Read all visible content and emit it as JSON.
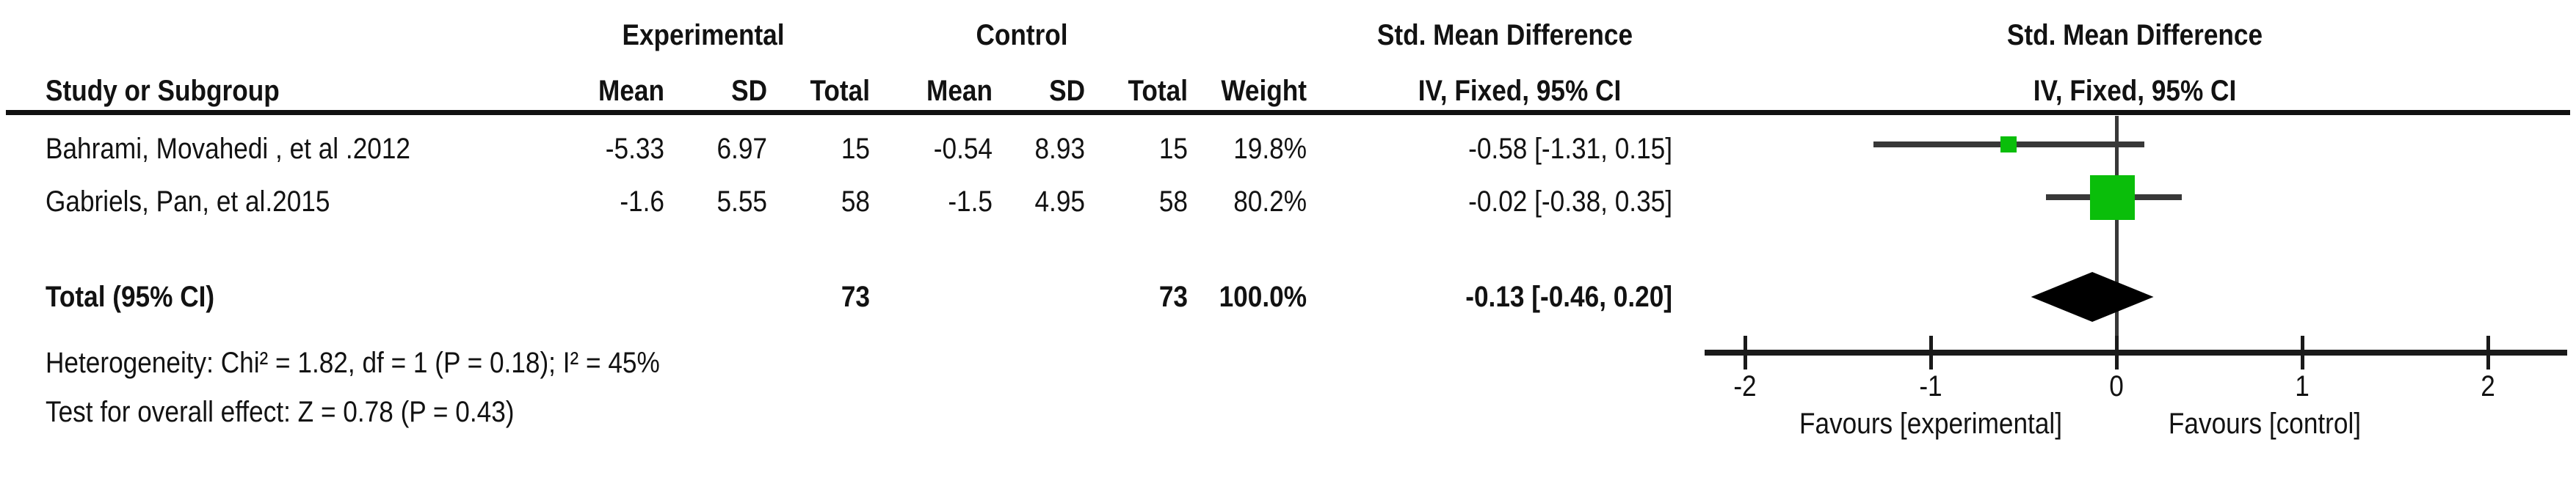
{
  "figure": {
    "group_headers": {
      "experimental": "Experimental",
      "control": "Control",
      "smd": "Std. Mean Difference"
    },
    "col_headers": {
      "study": "Study or Subgroup",
      "mean": "Mean",
      "sd": "SD",
      "total": "Total",
      "weight": "Weight",
      "ci": "IV, Fixed, 95% CI"
    },
    "plot_header": {
      "line1": "Std. Mean Difference",
      "line2": "IV, Fixed, 95% CI"
    }
  },
  "studies": [
    {
      "name": "Bahrami, Movahedi , et al .2012",
      "exp_mean": "-5.33",
      "exp_sd": "6.97",
      "exp_total": "15",
      "ctrl_mean": "-0.54",
      "ctrl_sd": "8.93",
      "ctrl_total": "15",
      "weight": "19.8%",
      "ci_text": "-0.58 [-1.31, 0.15]"
    },
    {
      "name": "Gabriels, Pan, et al.2015",
      "exp_mean": "-1.6",
      "exp_sd": "5.55",
      "exp_total": "58",
      "ctrl_mean": "-1.5",
      "ctrl_sd": "4.95",
      "ctrl_total": "58",
      "weight": "80.2%",
      "ci_text": "-0.02 [-0.38, 0.35]"
    }
  ],
  "total": {
    "label": "Total (95% CI)",
    "exp_total": "73",
    "ctrl_total": "73",
    "weight": "100.0%",
    "ci_text": "-0.13 [-0.46, 0.20]"
  },
  "footnotes": {
    "heterogeneity": "Heterogeneity: Chi² = 1.82, df = 1 (P = 0.18); I² = 45%",
    "overall": "Test for overall effect: Z = 0.78 (P = 0.43)"
  },
  "axis": {
    "favours_left": "Favours [experimental]",
    "favours_right": "Favours [control]"
  },
  "colors": {
    "marker_green": "#0ABE0A",
    "ci_line": "#383838",
    "axis": "#1a1a1a",
    "diamond": "#000000"
  },
  "chart_data": {
    "type": "scatter",
    "subtype": "forest-plot",
    "title": "Std. Mean Difference",
    "xlabel": "IV, Fixed, 95% CI",
    "xlim": [
      -2.3,
      2.45
    ],
    "x_ticks": [
      -2,
      -1,
      0,
      1,
      2
    ],
    "grid": false,
    "points": [
      {
        "label": "Bahrami, Movahedi , et al .2012",
        "smd": -0.58,
        "ci": [
          -1.31,
          0.15
        ],
        "weight_pct": 19.8
      },
      {
        "label": "Gabriels, Pan, et al.2015",
        "smd": -0.02,
        "ci": [
          -0.38,
          0.35
        ],
        "weight_pct": 80.2
      }
    ],
    "total": {
      "label": "Total (95% CI)",
      "smd": -0.13,
      "ci": [
        -0.46,
        0.2
      ],
      "weight_pct": 100.0
    },
    "annotations": [
      "Heterogeneity: Chi² = 1.82, df = 1 (P = 0.18); I² = 45%",
      "Test for overall effect: Z = 0.78 (P = 0.43)",
      "Favours [experimental]",
      "Favours [control]"
    ]
  }
}
